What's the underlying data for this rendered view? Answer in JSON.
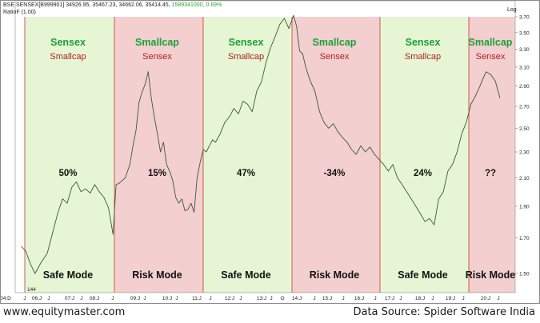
{
  "header": {
    "ticker": "BSE SENSEX[B999901]",
    "ohlc": "34926.95,  35467.23,  34662.06,  35414.45,",
    "volume": "1589341000,",
    "change": "0.69%",
    "ratio": "RatioF  (1.00)",
    "scale_label": "Log"
  },
  "colors": {
    "safe_zone": "#e6f5d3",
    "risk_zone": "#f3cfcf",
    "divider": "#cc3333",
    "price_line": "#3a5a3a",
    "green_text": "#1aa13a",
    "red_text": "#b22222",
    "change_green": "#2ca02c"
  },
  "chart_data": {
    "type": "line",
    "title": "",
    "ylabel": "",
    "xlabel": "",
    "yscale": "log",
    "ylim": [
      1.44,
      3.72
    ],
    "yticks": [
      "3.70",
      "3.50",
      "3.30",
      "3.10",
      "2.90",
      "2.70",
      "2.50",
      "2.30",
      "2.10",
      "1.90",
      "1.70",
      "1.50"
    ],
    "start_marker": "144",
    "xticks": [
      "04:D",
      "J",
      "06:J",
      "J",
      "07:J",
      "J",
      "08:J",
      "J",
      "09:J",
      "J",
      "10:J",
      "J",
      "11:J",
      "J",
      "12:J",
      "J",
      "13:J",
      "J",
      "O",
      "14:J",
      "J",
      "15:J",
      "J",
      "16:J",
      "J",
      "17:J",
      "J",
      "18:J",
      "J",
      "19:J",
      "J",
      "20:J",
      "J"
    ],
    "regimes": [
      {
        "phase": "safe",
        "top": "Sensex",
        "bottom": "Smallcap",
        "return": "50%",
        "mode": "Safe Mode"
      },
      {
        "phase": "risk",
        "top": "Smallcap",
        "bottom": "Sensex",
        "return": "15%",
        "mode": "Risk Mode"
      },
      {
        "phase": "safe",
        "top": "Sensex",
        "bottom": "Smallcap",
        "return": "47%",
        "mode": "Safe Mode"
      },
      {
        "phase": "risk",
        "top": "Smallcap",
        "bottom": "Sensex",
        "return": "-34%",
        "mode": "Risk Mode"
      },
      {
        "phase": "safe",
        "top": "Sensex",
        "bottom": "Smallcap",
        "return": "24%",
        "mode": "Safe Mode"
      },
      {
        "phase": "risk",
        "top": "Smallcap",
        "bottom": "Sensex",
        "return": "??",
        "mode": "Risk Mode"
      }
    ],
    "series": [
      {
        "x": [
          2004.95,
          2005.1,
          2005.25,
          2005.4,
          2005.6,
          2005.8,
          2006.0,
          2006.15,
          2006.3,
          2006.45,
          2006.6,
          2006.75,
          2006.9,
          2007.05,
          2007.2,
          2007.35,
          2007.5,
          2007.65,
          2007.8,
          2007.95,
          2008.05,
          2008.15,
          2008.25,
          2008.35,
          2008.5,
          2008.6,
          2008.7,
          2008.8,
          2008.9,
          2009.0,
          2009.1,
          2009.2,
          2009.3,
          2009.4,
          2009.5,
          2009.6,
          2009.7,
          2009.8,
          2009.9,
          2010.0,
          2010.1,
          2010.2,
          2010.3,
          2010.4,
          2010.5,
          2010.6,
          2010.7,
          2010.8,
          2010.9,
          2011.0,
          2011.1,
          2011.2,
          2011.3,
          2011.45,
          2011.6,
          2011.75,
          2011.9,
          2012.05,
          2012.2,
          2012.35,
          2012.5,
          2012.65,
          2012.8,
          2012.95,
          2013.1,
          2013.25,
          2013.4,
          2013.55,
          2013.7,
          2013.85,
          2013.95,
          2014.05,
          2014.15,
          2014.25,
          2014.4,
          2014.55,
          2014.7,
          2014.85,
          2015.0,
          2015.15,
          2015.3,
          2015.45,
          2015.6,
          2015.75,
          2015.9,
          2016.05,
          2016.2,
          2016.35,
          2016.5,
          2016.65,
          2016.8,
          2016.95,
          2017.1,
          2017.25,
          2017.4,
          2017.55,
          2017.7,
          2017.85,
          2018.0,
          2018.15,
          2018.3,
          2018.45,
          2018.6,
          2018.75,
          2018.9,
          2019.05,
          2019.2,
          2019.35,
          2019.5,
          2019.65,
          2019.8,
          2019.95,
          2020.05,
          2020.15,
          2020.3,
          2020.45,
          2020.6
        ],
        "values": [
          1.65,
          1.62,
          1.55,
          1.5,
          1.56,
          1.61,
          1.75,
          1.86,
          1.95,
          1.92,
          2.03,
          2.07,
          2.0,
          2.02,
          1.99,
          2.05,
          2.0,
          1.96,
          1.89,
          1.72,
          2.05,
          2.06,
          2.08,
          2.1,
          2.2,
          2.35,
          2.48,
          2.74,
          2.84,
          2.92,
          3.05,
          2.78,
          2.6,
          2.45,
          2.3,
          2.38,
          2.2,
          2.15,
          2.08,
          1.96,
          1.92,
          1.95,
          1.87,
          1.88,
          1.92,
          1.86,
          2.1,
          2.22,
          2.32,
          2.3,
          2.35,
          2.4,
          2.38,
          2.45,
          2.55,
          2.6,
          2.68,
          2.63,
          2.75,
          2.72,
          2.65,
          2.85,
          2.94,
          3.15,
          3.32,
          3.45,
          3.6,
          3.68,
          3.55,
          3.72,
          3.58,
          3.28,
          3.25,
          3.1,
          2.95,
          2.85,
          2.65,
          2.55,
          2.5,
          2.54,
          2.47,
          2.42,
          2.38,
          2.32,
          2.28,
          2.35,
          2.3,
          2.34,
          2.28,
          2.24,
          2.2,
          2.15,
          2.2,
          2.1,
          2.05,
          2.0,
          1.95,
          1.9,
          1.85,
          1.8,
          1.82,
          1.78,
          1.95,
          2.0,
          2.15,
          2.2,
          2.3,
          2.45,
          2.55,
          2.72,
          2.8,
          2.9,
          2.98,
          3.05,
          3.02,
          2.95,
          2.78
        ]
      }
    ]
  },
  "footer": {
    "site": "www.equitymaster.com",
    "source": "Data Source: Spider Software India"
  }
}
